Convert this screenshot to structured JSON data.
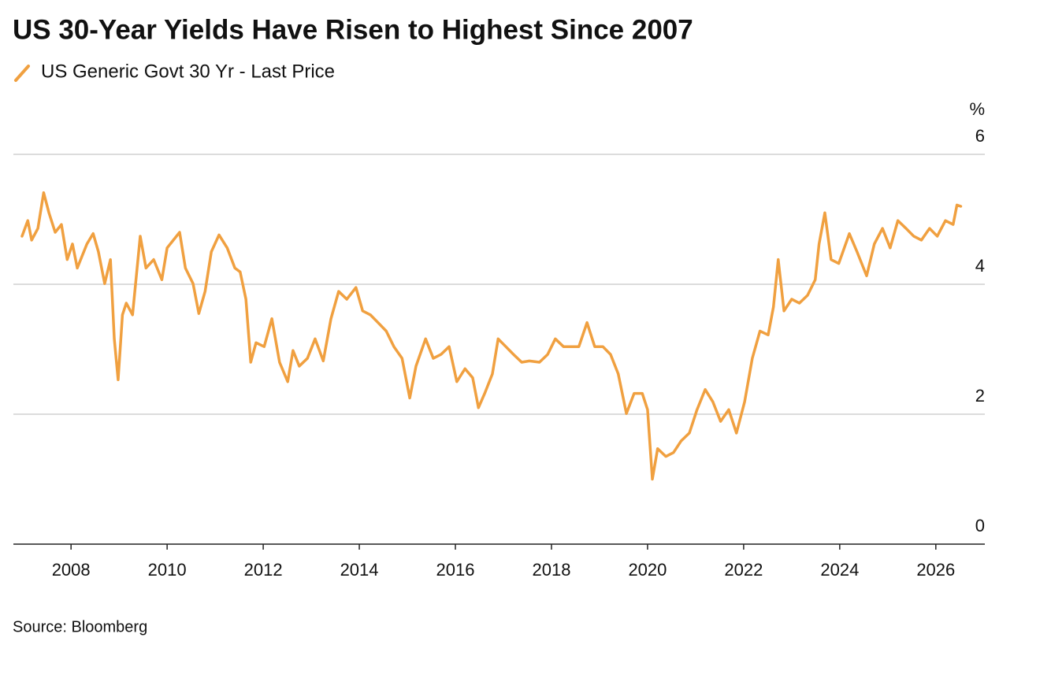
{
  "chart_data": {
    "type": "line",
    "title": "US 30-Year Yields Have Risen to Highest Since 2007",
    "ylabel": "%",
    "source": "Source: Bloomberg",
    "xlim": [
      2006.8,
      2027.02
    ],
    "xticks": [
      2008,
      2010,
      2012,
      2014,
      2016,
      2018,
      2020,
      2022,
      2024,
      2026
    ],
    "ylim": [
      0,
      6
    ],
    "yticks": [
      0,
      2,
      4,
      6
    ],
    "grid": true,
    "x": [
      2006.98,
      2007.1,
      2007.18,
      2007.31,
      2007.43,
      2007.54,
      2007.67,
      2007.8,
      2007.92,
      2008.03,
      2008.13,
      2008.33,
      2008.46,
      2008.57,
      2008.7,
      2008.82,
      2008.9,
      2008.98,
      2009.07,
      2009.15,
      2009.28,
      2009.44,
      2009.56,
      2009.72,
      2009.89,
      2010.0,
      2010.13,
      2010.26,
      2010.38,
      2010.54,
      2010.66,
      2010.79,
      2010.92,
      2011.08,
      2011.25,
      2011.41,
      2011.52,
      2011.64,
      2011.74,
      2011.85,
      2012.02,
      2012.18,
      2012.34,
      2012.51,
      2012.62,
      2012.75,
      2012.92,
      2013.08,
      2013.25,
      2013.41,
      2013.57,
      2013.74,
      2013.93,
      2014.07,
      2014.23,
      2014.39,
      2014.56,
      2014.72,
      2014.89,
      2015.05,
      2015.18,
      2015.38,
      2015.54,
      2015.7,
      2015.87,
      2016.03,
      2016.2,
      2016.36,
      2016.48,
      2016.61,
      2016.77,
      2016.89,
      2017.05,
      2017.21,
      2017.38,
      2017.54,
      2017.75,
      2017.92,
      2018.08,
      2018.25,
      2018.41,
      2018.57,
      2018.74,
      2018.9,
      2019.07,
      2019.23,
      2019.39,
      2019.56,
      2019.72,
      2019.89,
      2020.0,
      2020.1,
      2020.21,
      2020.38,
      2020.54,
      2020.7,
      2020.87,
      2021.03,
      2021.2,
      2021.36,
      2021.52,
      2021.69,
      2021.85,
      2022.02,
      2022.18,
      2022.34,
      2022.51,
      2022.62,
      2022.72,
      2022.84,
      2023.0,
      2023.16,
      2023.33,
      2023.49,
      2023.57,
      2023.69,
      2023.82,
      2023.98,
      2024.2,
      2024.36,
      2024.56,
      2024.72,
      2024.89,
      2025.05,
      2025.21,
      2025.38,
      2025.54,
      2025.7,
      2025.87,
      2026.03,
      2026.2,
      2026.36,
      2026.44,
      2026.52
    ],
    "series": [
      {
        "name": "US Generic Govt 30 Yr - Last Price",
        "color": "#f0a040",
        "values": [
          4.74,
          4.98,
          4.68,
          4.86,
          5.41,
          5.1,
          4.8,
          4.92,
          4.38,
          4.62,
          4.25,
          4.62,
          4.78,
          4.5,
          4.01,
          4.38,
          3.16,
          2.53,
          3.53,
          3.71,
          3.53,
          4.74,
          4.25,
          4.38,
          4.07,
          4.56,
          4.68,
          4.8,
          4.25,
          4.01,
          3.55,
          3.89,
          4.5,
          4.76,
          4.56,
          4.25,
          4.19,
          3.77,
          2.8,
          3.1,
          3.04,
          3.47,
          2.8,
          2.5,
          2.98,
          2.74,
          2.86,
          3.16,
          2.82,
          3.47,
          3.89,
          3.77,
          3.95,
          3.59,
          3.53,
          3.41,
          3.28,
          3.04,
          2.86,
          2.25,
          2.74,
          3.16,
          2.86,
          2.92,
          3.04,
          2.5,
          2.7,
          2.56,
          2.1,
          2.32,
          2.62,
          3.16,
          3.04,
          2.92,
          2.8,
          2.82,
          2.8,
          2.92,
          3.16,
          3.04,
          3.04,
          3.04,
          3.41,
          3.04,
          3.04,
          2.92,
          2.62,
          2.01,
          2.32,
          2.32,
          2.07,
          1.0,
          1.47,
          1.35,
          1.41,
          1.59,
          1.71,
          2.07,
          2.38,
          2.19,
          1.89,
          2.07,
          1.71,
          2.19,
          2.86,
          3.28,
          3.22,
          3.65,
          4.38,
          3.59,
          3.77,
          3.71,
          3.83,
          4.07,
          4.62,
          5.1,
          4.38,
          4.32,
          4.78,
          4.5,
          4.13,
          4.62,
          4.86,
          4.56,
          4.98,
          4.86,
          4.74,
          4.68,
          4.86,
          4.74,
          4.98,
          4.92,
          5.22,
          5.2
        ]
      }
    ]
  }
}
